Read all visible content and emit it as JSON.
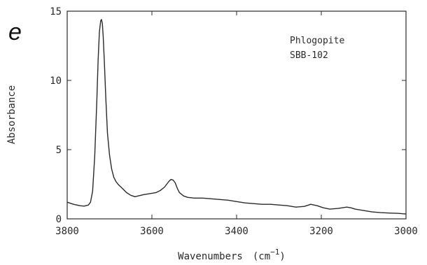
{
  "panel_label": "e",
  "chart_data": {
    "type": "line",
    "title": "",
    "xlabel": "Wavenumbers",
    "xlabel_unit_base": "(cm",
    "xlabel_unit_exp": "−1",
    "xlabel_unit_close": ")",
    "ylabel": "Absorbance",
    "xlim": [
      3800,
      3000
    ],
    "ylim": [
      0,
      15
    ],
    "x_reversed": true,
    "grid": false,
    "x_ticks": [
      3800,
      3600,
      3400,
      3200,
      3000
    ],
    "x_tick_labels": [
      "3800",
      "3600",
      "3400",
      "3200",
      "3000"
    ],
    "y_ticks": [
      0,
      5,
      10,
      15
    ],
    "y_tick_labels": [
      "0",
      "5",
      "10",
      "15"
    ],
    "annotations": [
      "Phlogopite",
      "SBB-102"
    ],
    "color": "#2a2a2a",
    "series": [
      {
        "x": [
          3800,
          3785,
          3770,
          3760,
          3750,
          3745,
          3740,
          3735,
          3730,
          3727,
          3724,
          3721,
          3719,
          3717,
          3715,
          3712,
          3709,
          3705,
          3700,
          3695,
          3690,
          3685,
          3680,
          3670,
          3660,
          3650,
          3640,
          3620,
          3600,
          3590,
          3580,
          3570,
          3560,
          3555,
          3550,
          3545,
          3540,
          3535,
          3525,
          3515,
          3500,
          3480,
          3460,
          3440,
          3420,
          3400,
          3380,
          3360,
          3340,
          3320,
          3300,
          3280,
          3260,
          3240,
          3225,
          3210,
          3195,
          3180,
          3160,
          3140,
          3130,
          3120,
          3100,
          3080,
          3060,
          3040,
          3020,
          3000
        ],
        "y": [
          1.2,
          1.05,
          0.95,
          0.92,
          1.0,
          1.2,
          2.0,
          4.5,
          8.5,
          11.5,
          13.5,
          14.3,
          14.4,
          14.1,
          13.2,
          11.2,
          8.8,
          6.2,
          4.6,
          3.6,
          3.0,
          2.7,
          2.5,
          2.2,
          1.9,
          1.7,
          1.6,
          1.75,
          1.85,
          1.9,
          2.05,
          2.3,
          2.7,
          2.85,
          2.8,
          2.6,
          2.2,
          1.9,
          1.65,
          1.55,
          1.5,
          1.5,
          1.45,
          1.4,
          1.35,
          1.25,
          1.15,
          1.1,
          1.05,
          1.05,
          1.0,
          0.95,
          0.85,
          0.9,
          1.05,
          0.95,
          0.8,
          0.7,
          0.75,
          0.85,
          0.8,
          0.7,
          0.6,
          0.5,
          0.45,
          0.42,
          0.4,
          0.35
        ]
      }
    ]
  }
}
